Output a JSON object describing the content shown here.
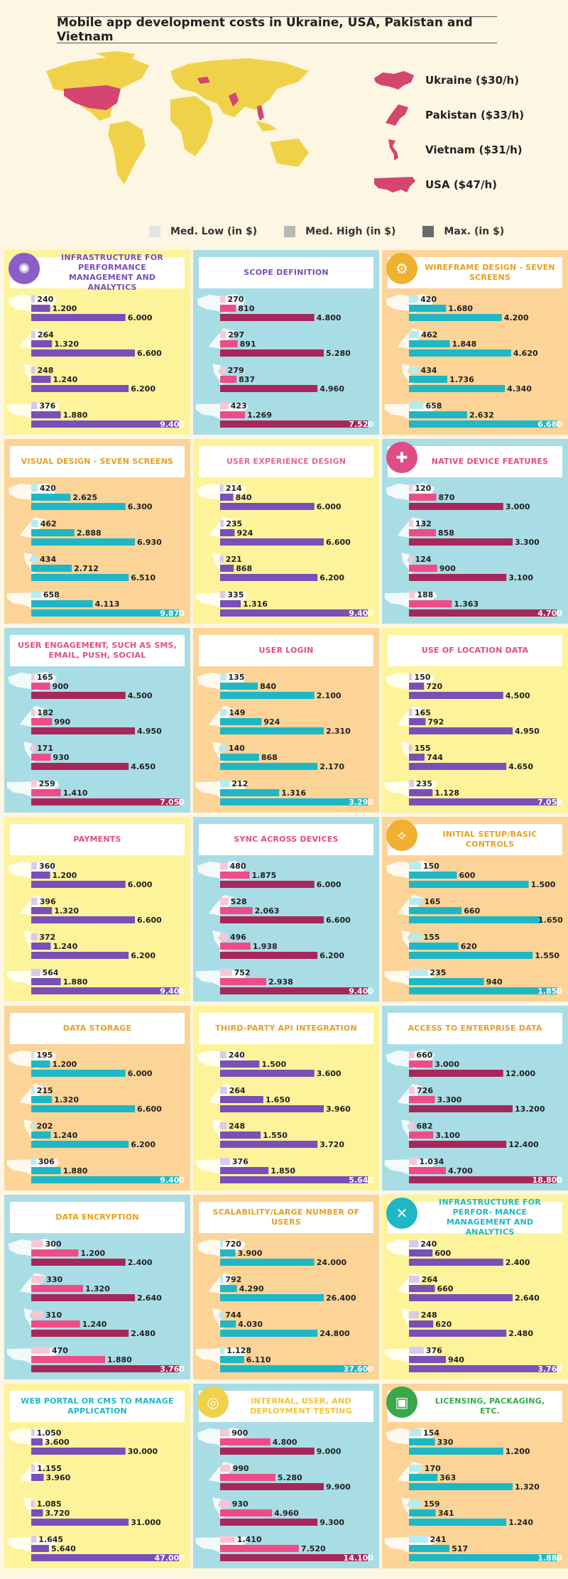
{
  "title": "Mobile app development costs in Ukraine, USA, Pakistan and Vietnam",
  "map_legend": [
    {
      "label": "Ukraine ($30/h)",
      "icon": "ukraine-map-icon"
    },
    {
      "label": "Pakistan ($33/h)",
      "icon": "pakistan-map-icon"
    },
    {
      "label": "Vietnam ($31/h)",
      "icon": "vietnam-map-icon"
    },
    {
      "label": "USA ($47/h)",
      "icon": "usa-map-icon"
    }
  ],
  "legend": [
    "Med. Low (in $)",
    "Med. High (in $)",
    "Max. (in $)"
  ],
  "colors": {
    "background": "#fdf6e3",
    "land": "#f0d24a",
    "highlight": "#d4456f",
    "legend_low": "#e3e3e3",
    "legend_high": "#b8b8b8",
    "legend_max": "#6b6b6b",
    "bg_yellow": "#fdf39a",
    "bg_blue": "#a8dde6",
    "bg_orange": "#fcd497",
    "purple": "#7a4fb8",
    "purple_light": "#d9c9ef",
    "teal": "#1fb7c5",
    "teal_light": "#b6ecf1",
    "maroon": "#a8275a",
    "pink": "#ee4c86",
    "pink_light": "#f9c6d6"
  },
  "chart_data": [
    {
      "type": "bar",
      "title": "INFRASTRUCTURE FOR PERFORMANCE MANAGEMENT AND ANALYTICS",
      "icon": "brain-icon",
      "icon_color": "#8a5dc7",
      "bg": "bg_yellow",
      "palette": "purple",
      "title_color": "#7a4fb8",
      "series": [
        [
          "240",
          "1.200",
          "6.000"
        ],
        [
          "264",
          "1.320",
          "6.600"
        ],
        [
          "248",
          "1.240",
          "6.200"
        ],
        [
          "376",
          "1.880",
          "9.400"
        ]
      ]
    },
    {
      "type": "bar",
      "title": "SCOPE DEFINITION",
      "bg": "bg_blue",
      "palette": "maroon",
      "title_color": "#7a4fb8",
      "series": [
        [
          "270",
          "810",
          "4.800"
        ],
        [
          "297",
          "891",
          "5.280"
        ],
        [
          "279",
          "837",
          "4.960"
        ],
        [
          "423",
          "1.269",
          "7.520"
        ]
      ]
    },
    {
      "type": "bar",
      "title": "WIREFRAME DESIGN - SEVEN SCREENS",
      "icon": "gear-icon",
      "icon_color": "#f0b030",
      "bg": "bg_orange",
      "palette": "teal",
      "title_color": "#e6a020",
      "series": [
        [
          "420",
          "1.680",
          "4.200"
        ],
        [
          "462",
          "1.848",
          "4.620"
        ],
        [
          "434",
          "1.736",
          "4.340"
        ],
        [
          "658",
          "2.632",
          "6.680"
        ]
      ]
    },
    {
      "type": "bar",
      "title": "VISUAL DESIGN - SEVEN SCREENS",
      "bg": "bg_orange",
      "palette": "teal",
      "title_color": "#e6a020",
      "series": [
        [
          "420",
          "2.625",
          "6.300"
        ],
        [
          "462",
          "2.888",
          "6.930"
        ],
        [
          "434",
          "2.712",
          "6.510"
        ],
        [
          "658",
          "4.113",
          "9.870"
        ]
      ]
    },
    {
      "type": "bar",
      "title": "USER EXPERIENCE DESIGN",
      "bg": "bg_yellow",
      "palette": "purple",
      "title_color": "#e06b8f",
      "series": [
        [
          "214",
          "840",
          "6.000"
        ],
        [
          "235",
          "924",
          "6.600"
        ],
        [
          "221",
          "868",
          "6.200"
        ],
        [
          "335",
          "1.316",
          "9.400"
        ]
      ]
    },
    {
      "type": "bar",
      "title": "NATIVE DEVICE FEATURES",
      "icon": "puzzle-icon",
      "icon_color": "#e04d86",
      "bg": "bg_blue",
      "palette": "maroon",
      "title_color": "#e04d86",
      "series": [
        [
          "120",
          "870",
          "3.000"
        ],
        [
          "132",
          "858",
          "3.300"
        ],
        [
          "124",
          "900",
          "3.100"
        ],
        [
          "188",
          "1.363",
          "4.700"
        ]
      ]
    },
    {
      "type": "bar",
      "title": "USER ENGAGEMENT, SUCH AS SMS, EMAIL, PUSH, SOCIAL",
      "bg": "bg_blue",
      "palette": "maroon",
      "title_color": "#e04d86",
      "series": [
        [
          "165",
          "900",
          "4.500"
        ],
        [
          "182",
          "990",
          "4.950"
        ],
        [
          "171",
          "930",
          "4.650"
        ],
        [
          "259",
          "1.410",
          "7.050"
        ]
      ]
    },
    {
      "type": "bar",
      "title": "USER LOGIN",
      "bg": "bg_orange",
      "palette": "teal",
      "title_color": "#e04d86",
      "series": [
        [
          "135",
          "840",
          "2.100"
        ],
        [
          "149",
          "924",
          "2.310"
        ],
        [
          "140",
          "868",
          "2.170"
        ],
        [
          "212",
          "1.316",
          "3.290"
        ]
      ]
    },
    {
      "type": "bar",
      "title": "USE OF LOCATION DATA",
      "bg": "bg_yellow",
      "palette": "purple",
      "title_color": "#e04d86",
      "series": [
        [
          "150",
          "720",
          "4.500"
        ],
        [
          "165",
          "792",
          "4.950"
        ],
        [
          "155",
          "744",
          "4.650"
        ],
        [
          "235",
          "1.128",
          "7.050"
        ]
      ]
    },
    {
      "type": "bar",
      "title": "PAYMENTS",
      "bg": "bg_yellow",
      "palette": "purple",
      "title_color": "#e04d86",
      "series": [
        [
          "360",
          "1.200",
          "6.000"
        ],
        [
          "396",
          "1.320",
          "6.600"
        ],
        [
          "372",
          "1.240",
          "6.200"
        ],
        [
          "564",
          "1.880",
          "9.400"
        ]
      ]
    },
    {
      "type": "bar",
      "title": "SYNC ACROSS DEVICES",
      "bg": "bg_blue",
      "palette": "maroon",
      "title_color": "#e04d86",
      "series": [
        [
          "480",
          "1.875",
          "6.000"
        ],
        [
          "528",
          "2.063",
          "6.600"
        ],
        [
          "496",
          "1.938",
          "6.200"
        ],
        [
          "752",
          "2.938",
          "9.400"
        ]
      ]
    },
    {
      "type": "bar",
      "title": "INITIAL SETUP/BASIC CONTROLS",
      "icon": "share-icon",
      "icon_color": "#f0b030",
      "bg": "bg_orange",
      "palette": "teal",
      "title_color": "#e6a020",
      "series": [
        [
          "150",
          "600",
          "1.500"
        ],
        [
          "165",
          "660",
          "1.650"
        ],
        [
          "155",
          "620",
          "1.550"
        ],
        [
          "235",
          "940",
          "1.850"
        ]
      ]
    },
    {
      "type": "bar",
      "title": "DATA STORAGE",
      "bg": "bg_orange",
      "palette": "teal",
      "title_color": "#e6a020",
      "series": [
        [
          "195",
          "1.200",
          "6.000"
        ],
        [
          "215",
          "1.320",
          "6.600"
        ],
        [
          "202",
          "1.240",
          "6.200"
        ],
        [
          "306",
          "1.880",
          "9.400"
        ]
      ]
    },
    {
      "type": "bar",
      "title": "THIRD-PARTY API INTEGRATION",
      "bg": "bg_yellow",
      "palette": "purple",
      "title_color": "#e6a020",
      "series": [
        [
          "240",
          "1.500",
          "3.600"
        ],
        [
          "264",
          "1.650",
          "3.960"
        ],
        [
          "248",
          "1.550",
          "3.720"
        ],
        [
          "376",
          "1.850",
          "5.640"
        ]
      ]
    },
    {
      "type": "bar",
      "title": "ACCESS TO ENTERPRISE DATA",
      "bg": "bg_blue",
      "palette": "maroon",
      "title_color": "#e6a020",
      "series": [
        [
          "660",
          "3.000",
          "12.000"
        ],
        [
          "726",
          "3.300",
          "13.200"
        ],
        [
          "682",
          "3.100",
          "12.400"
        ],
        [
          "1.034",
          "4.700",
          "18.800"
        ]
      ]
    },
    {
      "type": "bar",
      "title": "DATA ENCRYPTION",
      "bg": "bg_blue",
      "palette": "maroon",
      "title_color": "#e6a020",
      "series": [
        [
          "300",
          "1.200",
          "2.400"
        ],
        [
          "330",
          "1.320",
          "2.640"
        ],
        [
          "310",
          "1.240",
          "2.480"
        ],
        [
          "470",
          "1.880",
          "3.760"
        ]
      ]
    },
    {
      "type": "bar",
      "title": "SCALABILITY/LARGE NUMBER OF USERS",
      "bg": "bg_orange",
      "palette": "teal",
      "title_color": "#e6a020",
      "series": [
        [
          "720",
          "3.900",
          "24.000"
        ],
        [
          "792",
          "4.290",
          "26.400"
        ],
        [
          "744",
          "4.030",
          "24.800"
        ],
        [
          "1.128",
          "6.110",
          "37.600"
        ]
      ]
    },
    {
      "type": "bar",
      "title": "INFRASTRUCTURE FOR PERFOR- MANCE MANAGEMENT AND ANALYTICS",
      "icon": "tools-icon",
      "icon_color": "#1fb7c5",
      "bg": "bg_yellow",
      "palette": "purple",
      "title_color": "#1fb7c5",
      "series": [
        [
          "240",
          "600",
          "2.400"
        ],
        [
          "264",
          "660",
          "2.640"
        ],
        [
          "248",
          "620",
          "2.480"
        ],
        [
          "376",
          "940",
          "3.760"
        ]
      ]
    },
    {
      "type": "bar",
      "title": "WEB PORTAL OR CMS TO MANAGE APPLICATION",
      "bg": "bg_yellow",
      "palette": "purple",
      "title_color": "#1fb7c5",
      "series": [
        [
          "1.050",
          "3.600",
          "30.000"
        ],
        [
          "1.155",
          "3.960",
          ""
        ],
        [
          "1.085",
          "3.720",
          "31.000"
        ],
        [
          "1.645",
          "5.640",
          "47.000"
        ]
      ]
    },
    {
      "type": "bar",
      "title": "INTERNAL, USER, AND DEPLOYMENT TESTING",
      "icon": "target-icon",
      "icon_color": "#f0d24a",
      "bg": "bg_blue",
      "palette": "maroon",
      "title_color": "#f0c43a",
      "series": [
        [
          "900",
          "4.800",
          "9.000"
        ],
        [
          "990",
          "5.280",
          "9.900"
        ],
        [
          "930",
          "4.960",
          "9.300"
        ],
        [
          "1.410",
          "7.520",
          "14.100"
        ]
      ]
    },
    {
      "type": "bar",
      "title": "LICENSING, PACKAGING, ETC.",
      "icon": "gift-icon",
      "icon_color": "#3aa84a",
      "bg": "bg_orange",
      "palette": "teal",
      "title_color": "#3aa84a",
      "series": [
        [
          "154",
          "330",
          "1.200"
        ],
        [
          "170",
          "363",
          "1.320"
        ],
        [
          "159",
          "341",
          "1.240"
        ],
        [
          "241",
          "517",
          "1.880"
        ]
      ]
    }
  ]
}
